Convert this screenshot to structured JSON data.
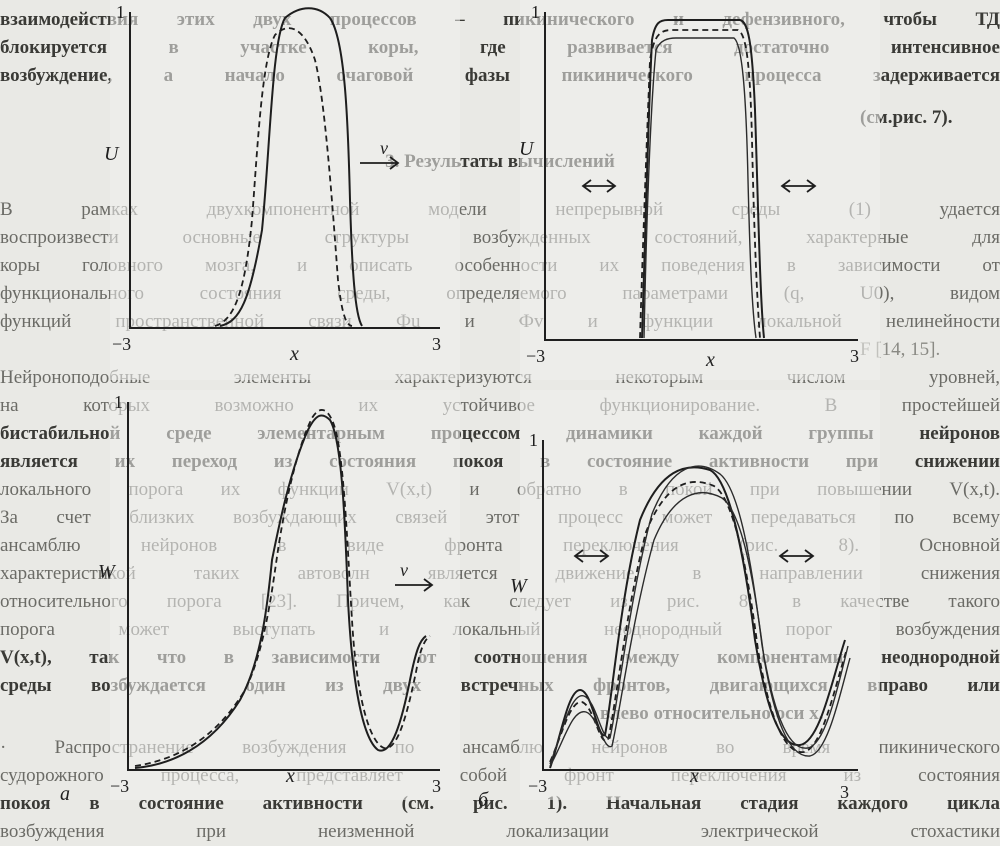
{
  "text_lines": [
    "взаимодействия этих двух процессов – пикинического и дефензивного, чтобы ТД",
    "блокируется в участке коры, где развивается достаточно интенсивное",
    "возбуждение, а начало очаговой фазы пикинического процесса задерживается",
    "(см.рис. 7).",
    "3. Результаты вычислений",
    "В рамках двухкомпонентной модели непрерывной среды (1) удается",
    "воспроизвести основные структуры возбужденных состояний, характерные для",
    "коры головного мозга, и описать особенности их поведения в зависимости от",
    "функционального состояния среды, определяемого параметрами (q, U0), видом",
    "функций пространственной связи Фu и Фv и функции локальной нелинейности",
    "F [14, 15].",
    "Нейроноподобные элементы характеризуются некоторым числом уровней,",
    "на которых возможно их устойчивое функционирование. В простейшей",
    "бистабильной среде элементарным процессом динамики каждой группы нейронов",
    "является их переход из состояния покоя в состояние активности при снижении",
    "локального порога их функции V(x,t) и обратно в покой при повышении V(x,t).",
    "За счет близких возбуждающих связей этот процесс может передаваться по всему",
    "ансамблю нейронов в виде фронта переключения (рис. 8). Основной",
    "характеристикой таких автоволн является движение в направлении снижения",
    "относительного порога [23]. Причем, как следует из рис. 8, в качестве такого",
    "порога может выступать и локальный неоднородный порог возбуждения",
    "V(x,t), так что в зависимости от соотношения между компонентами неоднородной",
    "среды возбуждается один из двух встречных фронтов, двигающихся вправо или",
    "влево относительно оси x.",
    "· Распространение возбуждения по ансамблю нейронов во время пикинического",
    "судорожного процесса, представляет собой фронт переключения из состояния",
    "покоя в состояние активности (см. рис. 1). Начальная стадия каждого цикла",
    "возбуждения при неизменной локализации электрической стохастики"
  ],
  "figure": {
    "panel_a_label": "а",
    "panel_b_label": "б",
    "plots": [
      {
        "ylabel": "U",
        "xlabel": "x",
        "xmin_label": "−3",
        "xmax_label": "3",
        "ytop_label": "1",
        "arrow_label": "v"
      },
      {
        "ylabel": "U",
        "xlabel": "x",
        "xmin_label": "−3",
        "xmax_label": "3",
        "ytop_label": "1"
      },
      {
        "ylabel": "W",
        "xlabel": "x",
        "xmin_label": "−3",
        "xmax_label": "3",
        "ytop_label": "1",
        "arrow_label": "v"
      },
      {
        "ylabel": "W",
        "xlabel": "x",
        "xmin_label": "−3",
        "xmax_label": "3",
        "ytop_label": "1"
      }
    ]
  }
}
